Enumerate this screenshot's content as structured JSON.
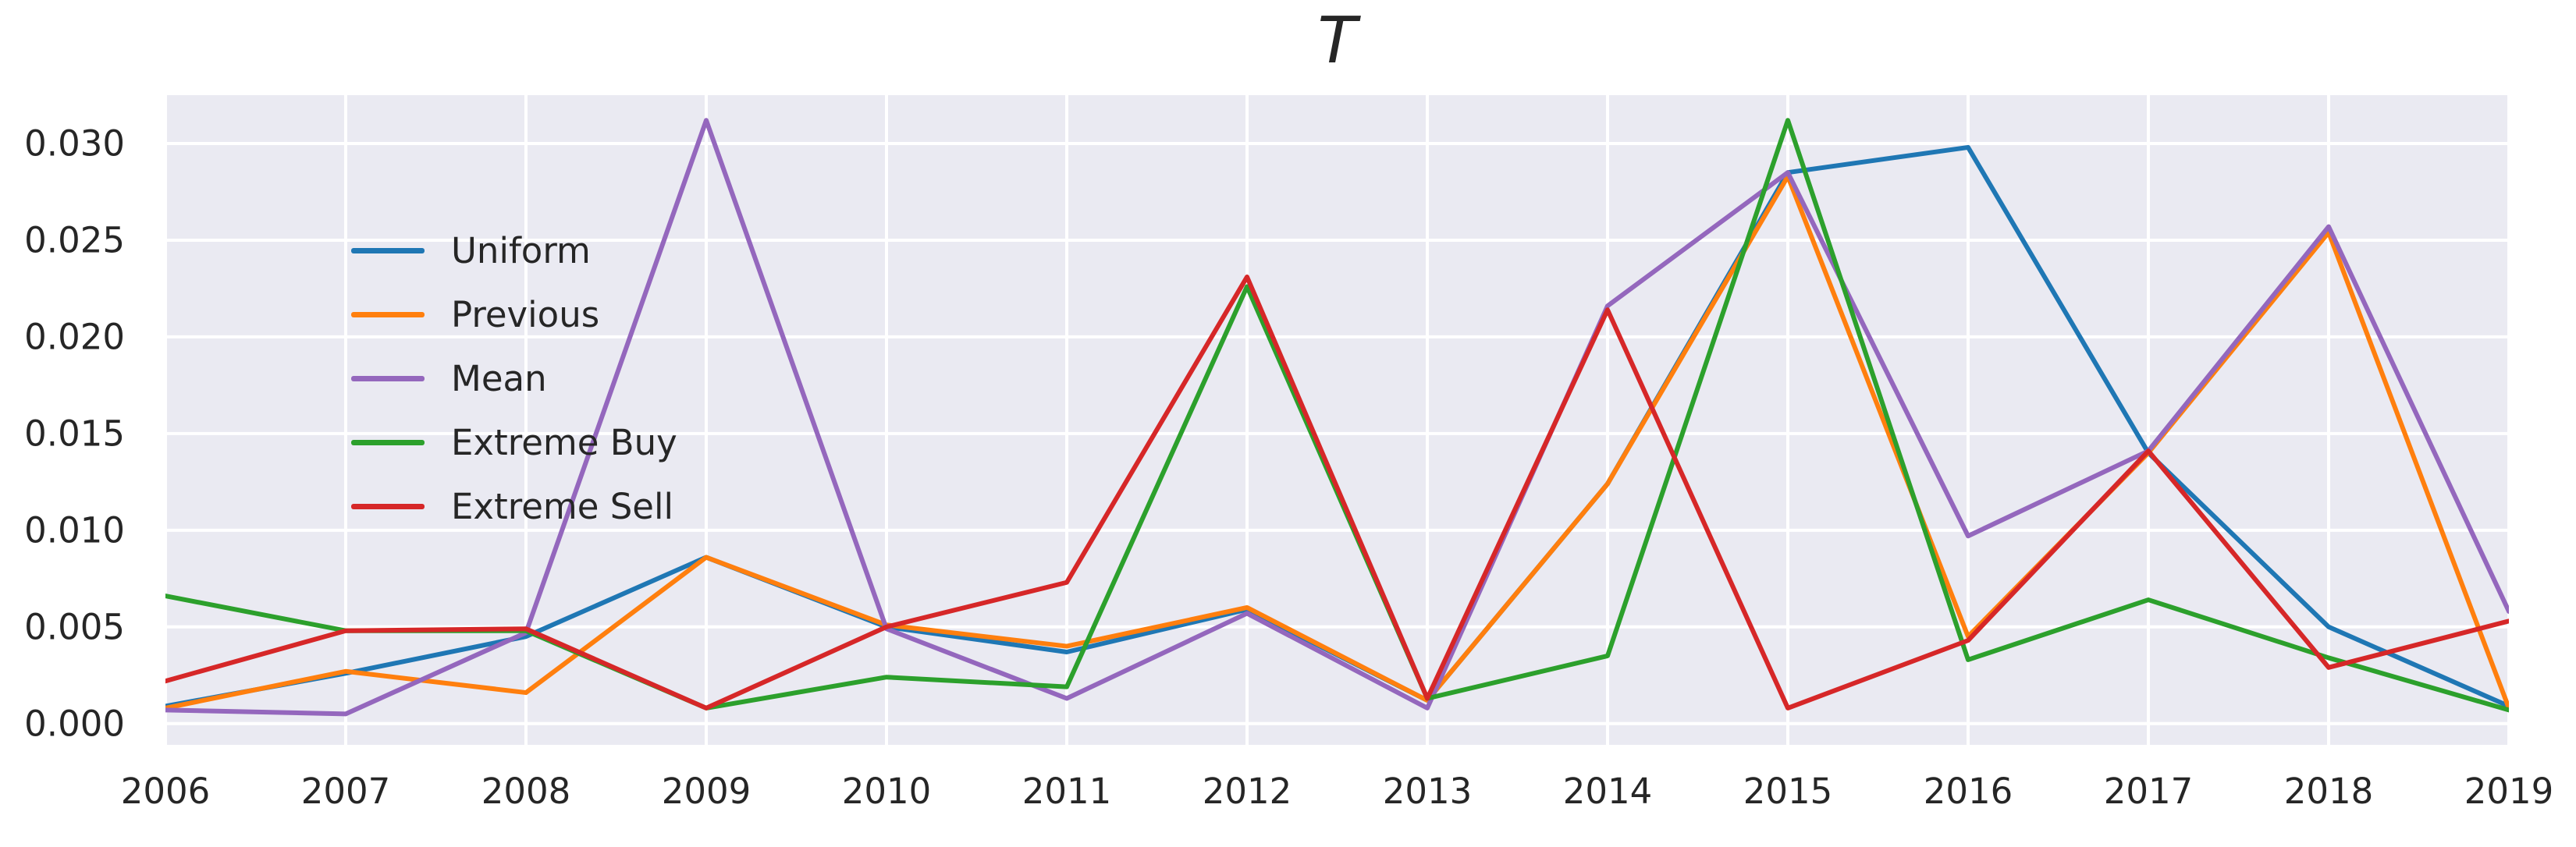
{
  "figure": {
    "title": "T",
    "background": "#ffffff",
    "plot_background": "#eaeaf2",
    "grid_color": "#ffffff",
    "text_color": "#262626"
  },
  "legend": {
    "position": "upper left",
    "entries": [
      "Uniform",
      "Previous",
      "Mean",
      "Extreme Buy",
      "Extreme Sell"
    ]
  },
  "chart_data": {
    "type": "line",
    "title": "T",
    "xlabel": "",
    "ylabel": "",
    "grid": true,
    "legend_position": "upper left",
    "x": [
      2006,
      2007,
      2008,
      2009,
      2010,
      2011,
      2012,
      2013,
      2014,
      2015,
      2016,
      2017,
      2018,
      2019
    ],
    "x_tick_labels": [
      "2006",
      "2007",
      "2008",
      "2009",
      "2010",
      "2011",
      "2012",
      "2013",
      "2014",
      "2015",
      "2016",
      "2017",
      "2018",
      "2019"
    ],
    "y_ticks": [
      0.0,
      0.005,
      0.01,
      0.015,
      0.02,
      0.025,
      0.03
    ],
    "y_tick_labels": [
      "0.000",
      "0.005",
      "0.010",
      "0.015",
      "0.020",
      "0.025",
      "0.030"
    ],
    "xlim": [
      2006,
      2019
    ],
    "ylim": [
      -0.0011,
      0.0325
    ],
    "series": [
      {
        "name": "Uniform",
        "color": "#1f77b4",
        "values": [
          0.0009,
          0.0026,
          0.0045,
          0.0086,
          0.005,
          0.0037,
          0.0059,
          0.0012,
          0.0124,
          0.0285,
          0.0298,
          0.014,
          0.005,
          0.0009
        ]
      },
      {
        "name": "Previous",
        "color": "#ff7f0e",
        "values": [
          0.0008,
          0.0027,
          0.0016,
          0.0086,
          0.0051,
          0.004,
          0.006,
          0.0012,
          0.0124,
          0.0283,
          0.0045,
          0.014,
          0.0254,
          0.0008
        ]
      },
      {
        "name": "Mean",
        "color": "#9467bd",
        "values": [
          0.0007,
          0.0005,
          0.0047,
          0.0312,
          0.0049,
          0.0013,
          0.0057,
          0.0008,
          0.0216,
          0.0285,
          0.0097,
          0.0141,
          0.0257,
          0.0058
        ]
      },
      {
        "name": "Extreme Buy",
        "color": "#2ca02c",
        "values": [
          0.0066,
          0.0048,
          0.0048,
          0.0008,
          0.0024,
          0.0019,
          0.0226,
          0.0013,
          0.0035,
          0.0312,
          0.0033,
          0.0064,
          0.0034,
          0.0007
        ]
      },
      {
        "name": "Extreme Sell",
        "color": "#d62728",
        "values": [
          0.0022,
          0.0048,
          0.0049,
          0.0008,
          0.005,
          0.0073,
          0.0231,
          0.0013,
          0.0214,
          0.0008,
          0.0043,
          0.0141,
          0.0029,
          0.0053
        ]
      }
    ]
  }
}
